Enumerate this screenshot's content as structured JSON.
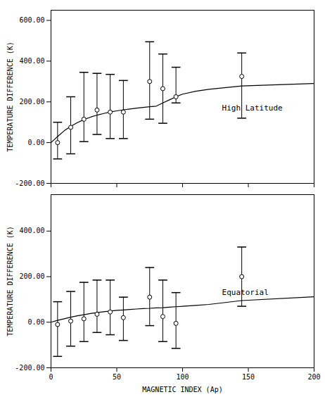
{
  "chart_data": [
    {
      "type": "scatter",
      "ylabel": "TEMPERATURE DIFFERENCE (K)",
      "annotation": "High Latitude",
      "xlim": [
        0,
        200
      ],
      "xticks": [
        0,
        50,
        100,
        150,
        200
      ],
      "ylim": [
        -200,
        650
      ],
      "yticks": [
        {
          "value": -200,
          "label": "-200.00"
        },
        {
          "value": 0,
          "label": "0.00"
        },
        {
          "value": 200,
          "label": "200.00"
        },
        {
          "value": 400,
          "label": "400.00"
        },
        {
          "value": 600,
          "label": "600.00"
        }
      ],
      "tick_labels": "y",
      "series": [
        {
          "type": "line",
          "color": "black",
          "x": [
            0,
            5,
            10,
            15,
            20,
            25,
            30,
            35,
            40,
            45,
            50,
            55,
            60,
            65,
            70,
            75,
            80,
            85,
            90,
            95,
            100,
            110,
            120,
            145,
            200
          ],
          "values": [
            0,
            30,
            58,
            80,
            98,
            113,
            125,
            135,
            143,
            150,
            156,
            161,
            165,
            169,
            173,
            176,
            179,
            195,
            210,
            225,
            238,
            252,
            262,
            278,
            290
          ]
        },
        {
          "type": "scatter",
          "color": "black",
          "marker": "circle",
          "x": [
            5,
            15,
            25,
            35,
            45,
            55,
            75,
            85,
            95,
            145
          ],
          "values": [
            0,
            75,
            115,
            160,
            150,
            150,
            300,
            265,
            225,
            325
          ],
          "yerr_lo": [
            80,
            130,
            110,
            120,
            130,
            130,
            185,
            170,
            30,
            205
          ],
          "yerr_hi": [
            100,
            150,
            230,
            180,
            185,
            155,
            195,
            170,
            145,
            115
          ]
        }
      ]
    },
    {
      "type": "scatter",
      "ylabel": "TEMPERATURE DIFFERENCE (K)",
      "xlabel": "MAGNETIC INDEX (Ap)",
      "annotation": "Equatorial",
      "xlim": [
        0,
        200
      ],
      "xticks": [
        0,
        50,
        100,
        150,
        200
      ],
      "ylim": [
        -200,
        560
      ],
      "yticks": [
        {
          "value": -200,
          "label": "-200.00"
        },
        {
          "value": 0,
          "label": "0.00"
        },
        {
          "value": 200,
          "label": "200.00"
        },
        {
          "value": 400,
          "label": "400.00"
        }
      ],
      "series": [
        {
          "type": "line",
          "color": "black",
          "x": [
            0,
            5,
            10,
            15,
            20,
            25,
            30,
            35,
            40,
            45,
            50,
            55,
            60,
            65,
            70,
            75,
            80,
            85,
            90,
            95,
            100,
            110,
            120,
            145,
            200
          ],
          "values": [
            0,
            8,
            15,
            22,
            28,
            33,
            38,
            42,
            46,
            49,
            52,
            54,
            56,
            58,
            60,
            61,
            63,
            64,
            66,
            68,
            70,
            74,
            78,
            95,
            112
          ]
        },
        {
          "type": "scatter",
          "color": "black",
          "marker": "circle",
          "x": [
            5,
            15,
            25,
            35,
            45,
            55,
            75,
            85,
            95,
            145
          ],
          "values": [
            -10,
            5,
            15,
            35,
            45,
            20,
            110,
            25,
            -5,
            200
          ],
          "yerr_lo": [
            140,
            110,
            100,
            80,
            100,
            100,
            125,
            110,
            110,
            130
          ],
          "yerr_hi": [
            100,
            130,
            160,
            150,
            140,
            90,
            130,
            160,
            135,
            130
          ]
        }
      ]
    }
  ]
}
